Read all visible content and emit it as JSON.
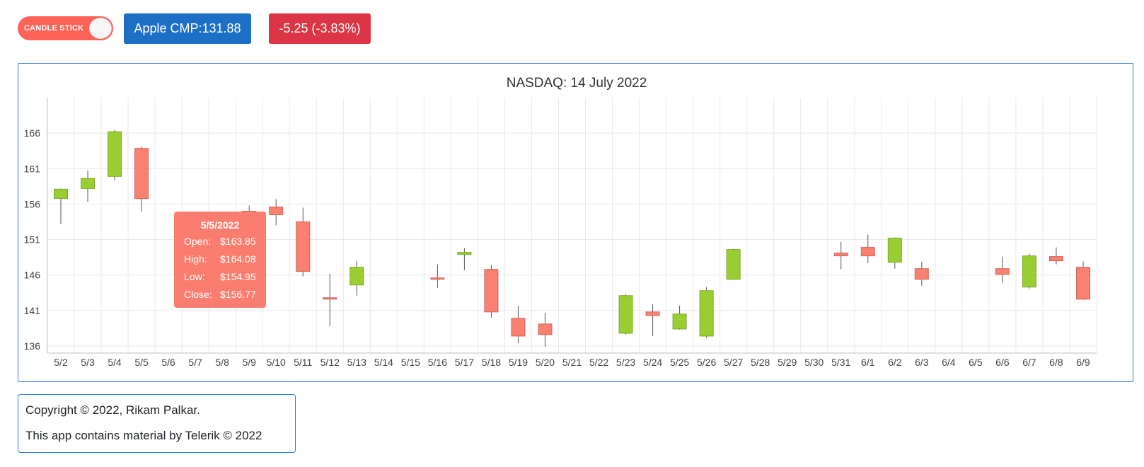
{
  "toggle": {
    "label": "CANDLE STICK",
    "on": true
  },
  "price_badge": {
    "text": "Apple CMP:131.88"
  },
  "change_badge": {
    "text": "-5.25 (-3.83%)"
  },
  "tooltip": {
    "date": "5/5/2022",
    "rows": [
      {
        "key": "Open:",
        "value": "$163.85"
      },
      {
        "key": "High:",
        "value": "$164.08"
      },
      {
        "key": "Low:",
        "value": "$154.95"
      },
      {
        "key": "Close:",
        "value": "$156.77"
      }
    ]
  },
  "footer": {
    "line1": "Copyright © 2022, Rikam Palkar.",
    "line2": "This app contains material by Telerik © 2022"
  },
  "colors": {
    "up": "#9acd32",
    "down": "#fa8072",
    "accent": "#ff6358",
    "border": "#2f7ee6"
  },
  "chart_data": {
    "type": "candlestick",
    "title": "NASDAQ: 14 July 2022",
    "ylim": [
      135,
      171
    ],
    "yticks": [
      136,
      141,
      146,
      151,
      156,
      161,
      166
    ],
    "grid": true,
    "categories": [
      "5/2",
      "5/3",
      "5/4",
      "5/5",
      "5/6",
      "5/7",
      "5/8",
      "5/9",
      "5/10",
      "5/11",
      "5/12",
      "5/13",
      "5/14",
      "5/15",
      "5/16",
      "5/17",
      "5/18",
      "5/19",
      "5/20",
      "5/21",
      "5/22",
      "5/23",
      "5/24",
      "5/25",
      "5/26",
      "5/27",
      "5/28",
      "5/29",
      "5/30",
      "5/31",
      "6/1",
      "6/2",
      "6/3",
      "6/4",
      "6/5",
      "6/6",
      "6/7",
      "6/8",
      "6/9"
    ],
    "candles": [
      {
        "date": "5/2",
        "open": 156.8,
        "high": 158.2,
        "low": 153.2,
        "close": 158.1
      },
      {
        "date": "5/3",
        "open": 158.2,
        "high": 160.7,
        "low": 156.3,
        "close": 159.6
      },
      {
        "date": "5/4",
        "open": 159.9,
        "high": 166.5,
        "low": 159.3,
        "close": 166.2
      },
      {
        "date": "5/5",
        "open": 163.85,
        "high": 164.08,
        "low": 154.95,
        "close": 156.77
      },
      {
        "date": "5/9",
        "open": 155.0,
        "high": 155.8,
        "low": 151.4,
        "close": 152.0
      },
      {
        "date": "5/10",
        "open": 155.6,
        "high": 156.7,
        "low": 153.0,
        "close": 154.5
      },
      {
        "date": "5/11",
        "open": 153.5,
        "high": 155.5,
        "low": 145.8,
        "close": 146.5
      },
      {
        "date": "5/12",
        "open": 142.8,
        "high": 146.2,
        "low": 138.8,
        "close": 142.6
      },
      {
        "date": "5/13",
        "open": 144.6,
        "high": 148.0,
        "low": 143.1,
        "close": 147.1
      },
      {
        "date": "5/16",
        "open": 145.6,
        "high": 147.5,
        "low": 144.2,
        "close": 145.5
      },
      {
        "date": "5/17",
        "open": 148.9,
        "high": 149.8,
        "low": 146.7,
        "close": 149.2
      },
      {
        "date": "5/18",
        "open": 146.8,
        "high": 147.4,
        "low": 140.0,
        "close": 140.8
      },
      {
        "date": "5/19",
        "open": 139.9,
        "high": 141.7,
        "low": 136.4,
        "close": 137.4
      },
      {
        "date": "5/20",
        "open": 139.1,
        "high": 140.7,
        "low": 135.9,
        "close": 137.6
      },
      {
        "date": "5/23",
        "open": 137.8,
        "high": 143.3,
        "low": 137.6,
        "close": 143.1
      },
      {
        "date": "5/24",
        "open": 140.8,
        "high": 141.9,
        "low": 137.4,
        "close": 140.3
      },
      {
        "date": "5/25",
        "open": 138.4,
        "high": 141.7,
        "low": 138.3,
        "close": 140.5
      },
      {
        "date": "5/26",
        "open": 137.4,
        "high": 144.3,
        "low": 137.1,
        "close": 143.8
      },
      {
        "date": "5/27",
        "open": 145.4,
        "high": 149.7,
        "low": 145.3,
        "close": 149.6
      },
      {
        "date": "5/31",
        "open": 149.1,
        "high": 150.7,
        "low": 146.8,
        "close": 148.7
      },
      {
        "date": "6/1",
        "open": 149.9,
        "high": 151.7,
        "low": 147.7,
        "close": 148.7
      },
      {
        "date": "6/2",
        "open": 147.8,
        "high": 151.3,
        "low": 146.9,
        "close": 151.2
      },
      {
        "date": "6/3",
        "open": 146.9,
        "high": 147.9,
        "low": 144.5,
        "close": 145.4
      },
      {
        "date": "6/6",
        "open": 146.9,
        "high": 148.6,
        "low": 144.9,
        "close": 146.1
      },
      {
        "date": "6/7",
        "open": 144.3,
        "high": 149.0,
        "low": 144.1,
        "close": 148.7
      },
      {
        "date": "6/8",
        "open": 148.6,
        "high": 149.9,
        "low": 147.5,
        "close": 148.0
      },
      {
        "date": "6/9",
        "open": 147.1,
        "high": 147.9,
        "low": 142.5,
        "close": 142.6
      }
    ]
  }
}
